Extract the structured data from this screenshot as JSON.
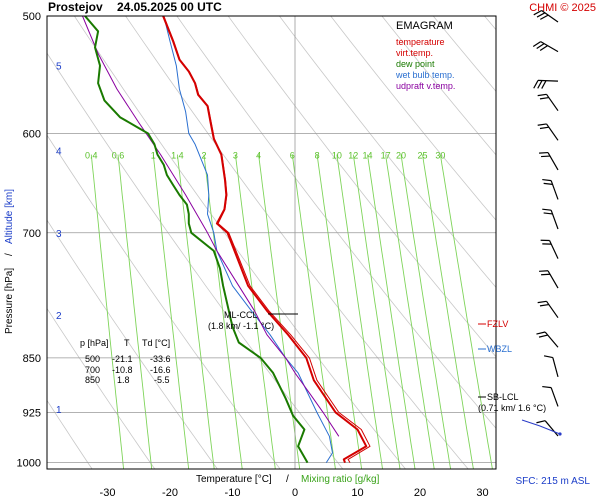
{
  "header": {
    "station": "Prostejov",
    "datetime": "24.05.2025 00 UTC",
    "credit": "CHMI © 2025"
  },
  "legend": {
    "title": "EMAGRAM",
    "items": [
      {
        "label": "temperature",
        "color": "#d40000"
      },
      {
        "label": "virt.temp.",
        "color": "#d40000"
      },
      {
        "label": "dew point",
        "color": "#1a7a00"
      },
      {
        "label": "wet bulb temp.",
        "color": "#2a6fd0"
      },
      {
        "label": "udpraft v.temp.",
        "color": "#8a00a0"
      }
    ]
  },
  "table": {
    "headers": [
      "p [hPa]",
      "T",
      "Td [°C]"
    ],
    "rows": [
      [
        "500",
        "-21.1",
        "-33.6"
      ],
      [
        "700",
        "-10.8",
        "-16.6"
      ],
      [
        "850",
        "1.8",
        "-5.5"
      ]
    ]
  },
  "annotations": {
    "ml_ccl_title": "ML-CCL",
    "ml_ccl_value": "(1.8 km/ -1.1 °C)",
    "fzlv": "FZLV",
    "wbzl": "WBZL",
    "sb_lcl_title": "SB-LCL",
    "sb_lcl_value": "(0.71 km/ 1.6 °C)",
    "sfc": "SFC: 215 m ASL"
  },
  "colors": {
    "temperature": "#d40000",
    "dewpoint": "#1a7a00",
    "wetbulb": "#2a6fd0",
    "parcel": "#8a00a0",
    "mixing": "#7fd45a",
    "dry_adiabat": "#c8c8c8",
    "grid": "#999999",
    "altitude": "#1a3cc8",
    "fzlv": "#d40000",
    "wbzl": "#2a6fd0"
  },
  "chart_data": {
    "type": "line",
    "title": "EMAGRAM",
    "xlabel": "Temperature [°C]",
    "xlabel_extra": "Mixing ratio [g/kg]",
    "ylabel": "Pressure [hPa]",
    "ylabel_extra": "Altitude [km]",
    "y_scale": "log",
    "xlim": [
      -38,
      34
    ],
    "ylim": [
      1010,
      500
    ],
    "x_ticks": [
      -30,
      -20,
      -10,
      0,
      10,
      20,
      30
    ],
    "p_ticks": [
      500,
      600,
      700,
      850,
      925,
      1000
    ],
    "altitude_ticks": [
      {
        "label": "1",
        "p": 920
      },
      {
        "label": "2",
        "p": 795
      },
      {
        "label": "3",
        "p": 700
      },
      {
        "label": "4",
        "p": 616
      },
      {
        "label": "5",
        "p": 540
      }
    ],
    "mixing_ratio_labels": [
      "0.4",
      "0.6",
      "1",
      "1.4",
      "2",
      "3",
      "4",
      "6",
      "8",
      "10",
      "12",
      "14",
      "17",
      "20",
      "25",
      "30"
    ],
    "series": [
      {
        "name": "temperature",
        "points": [
          [
            8.0,
            1000
          ],
          [
            7.8,
            995
          ],
          [
            11.4,
            975
          ],
          [
            10.0,
            950
          ],
          [
            6.5,
            925
          ],
          [
            3.0,
            880
          ],
          [
            1.8,
            850
          ],
          [
            -1.1,
            820
          ],
          [
            -4.5,
            790
          ],
          [
            -7.5,
            760
          ],
          [
            -10.8,
            700
          ],
          [
            -12.5,
            690
          ],
          [
            -11.3,
            675
          ],
          [
            -11.0,
            660
          ],
          [
            -11.2,
            645
          ],
          [
            -11.8,
            620
          ],
          [
            -13.0,
            605
          ],
          [
            -13.5,
            590
          ],
          [
            -14.0,
            575
          ],
          [
            -15.5,
            565
          ],
          [
            -16.0,
            555
          ],
          [
            -17.0,
            545
          ],
          [
            -18.5,
            535
          ],
          [
            -19.5,
            520
          ],
          [
            -21.1,
            500
          ]
        ]
      },
      {
        "name": "virt.temp.",
        "points": [
          [
            8.8,
            1000
          ],
          [
            8.5,
            995
          ],
          [
            12.0,
            975
          ],
          [
            10.6,
            950
          ],
          [
            7.0,
            925
          ],
          [
            3.5,
            880
          ],
          [
            2.3,
            850
          ],
          [
            -0.7,
            820
          ],
          [
            -4.2,
            790
          ],
          [
            -7.2,
            760
          ],
          [
            -10.6,
            700
          ],
          [
            -12.3,
            690
          ],
          [
            -11.2,
            675
          ],
          [
            -10.9,
            660
          ],
          [
            -11.1,
            645
          ],
          [
            -11.7,
            620
          ],
          [
            -12.9,
            605
          ],
          [
            -13.4,
            590
          ],
          [
            -13.9,
            575
          ],
          [
            -15.4,
            565
          ],
          [
            -15.9,
            555
          ],
          [
            -16.9,
            545
          ],
          [
            -18.4,
            535
          ],
          [
            -19.4,
            520
          ],
          [
            -21.0,
            500
          ]
        ]
      },
      {
        "name": "dew point",
        "points": [
          [
            2.0,
            1000
          ],
          [
            0.5,
            975
          ],
          [
            1.5,
            950
          ],
          [
            -0.3,
            930
          ],
          [
            -1.5,
            905
          ],
          [
            -3.5,
            870
          ],
          [
            -5.5,
            850
          ],
          [
            -9.0,
            830
          ],
          [
            -10.0,
            810
          ],
          [
            -10.6,
            790
          ],
          [
            -11.5,
            760
          ],
          [
            -12.0,
            740
          ],
          [
            -13.0,
            720
          ],
          [
            -16.6,
            700
          ],
          [
            -17.0,
            690
          ],
          [
            -17.0,
            680
          ],
          [
            -17.3,
            670
          ],
          [
            -18.5,
            660
          ],
          [
            -19.5,
            650
          ],
          [
            -20.5,
            640
          ],
          [
            -21.0,
            630
          ],
          [
            -22.0,
            620
          ],
          [
            -22.5,
            610
          ],
          [
            -23.5,
            600
          ],
          [
            -28.0,
            585
          ],
          [
            -30.5,
            570
          ],
          [
            -31.5,
            555
          ],
          [
            -31.2,
            540
          ],
          [
            -32.0,
            525
          ],
          [
            -31.5,
            512
          ],
          [
            -33.6,
            500
          ]
        ]
      },
      {
        "name": "wet bulb temp.",
        "points": [
          [
            5.0,
            1000
          ],
          [
            6.0,
            985
          ],
          [
            5.5,
            960
          ],
          [
            3.5,
            925
          ],
          [
            0.5,
            870
          ],
          [
            -1.5,
            850
          ],
          [
            -4.0,
            820
          ],
          [
            -7.0,
            790
          ],
          [
            -10.0,
            760
          ],
          [
            -12.5,
            720
          ],
          [
            -13.0,
            700
          ],
          [
            -14.0,
            680
          ],
          [
            -13.8,
            660
          ],
          [
            -14.0,
            640
          ],
          [
            -16.0,
            610
          ],
          [
            -17.0,
            600
          ],
          [
            -17.5,
            580
          ],
          [
            -18.5,
            560
          ],
          [
            -19.0,
            540
          ],
          [
            -20.0,
            520
          ],
          [
            -21.0,
            500
          ]
        ]
      },
      {
        "name": "udpraft v.temp.",
        "points": [
          [
            7.0,
            960
          ],
          [
            4.5,
            925
          ],
          [
            2.5,
            900
          ],
          [
            0.0,
            870
          ],
          [
            -1.5,
            850
          ],
          [
            -4.5,
            820
          ],
          [
            -6.5,
            790
          ],
          [
            -9.0,
            760
          ],
          [
            -12.5,
            720
          ],
          [
            -14.0,
            700
          ],
          [
            -17.5,
            660
          ],
          [
            -21.5,
            620
          ],
          [
            -25.0,
            590
          ],
          [
            -28.5,
            560
          ],
          [
            -31.5,
            530
          ],
          [
            -34.0,
            500
          ]
        ]
      }
    ],
    "hodograph_barbs": 15
  }
}
